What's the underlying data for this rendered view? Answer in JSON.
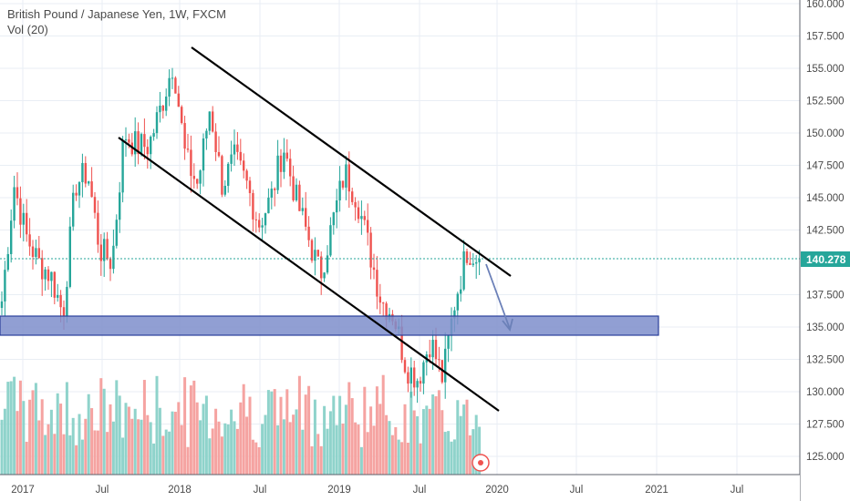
{
  "legend": {
    "title": "British Pound / Japanese Yen, 1W, FXCM",
    "volume": "Vol (20)"
  },
  "colors": {
    "up": "#26a69a",
    "down": "#ef5350",
    "up_vol": "#8fd3cb",
    "down_vol": "#f5a3a1",
    "zone_fill": "#7e8ecb",
    "zone_border": "#2a3f9b",
    "grid": "#e9eef4",
    "last_price": "#26a69a"
  },
  "chart_data": {
    "type": "candlestick",
    "title": "British Pound / Japanese Yen, 1W, FXCM",
    "ylim": [
      124,
      160.5
    ],
    "y_ticks": [
      "160.000",
      "157.500",
      "155.000",
      "152.500",
      "150.000",
      "147.500",
      "145.000",
      "142.500",
      "137.500",
      "135.000",
      "132.500",
      "130.000",
      "127.500",
      "125.000"
    ],
    "x_ticks": [
      "2017",
      "Jul",
      "2018",
      "Jul",
      "2019",
      "Jul",
      "2020",
      "Jul",
      "2021",
      "Jul"
    ],
    "last_price": "140.278",
    "approx_close_path": [
      [
        "2016-12",
        137
      ],
      [
        "2016-12",
        146
      ],
      [
        "2017-01",
        142
      ],
      [
        "2017-03",
        140
      ],
      [
        "2017-04",
        139
      ],
      [
        "2017-05",
        136
      ],
      [
        "2017-06",
        146
      ],
      [
        "2017-07",
        147
      ],
      [
        "2017-08",
        141
      ],
      [
        "2017-09",
        140
      ],
      [
        "2017-10",
        150
      ],
      [
        "2017-11",
        149
      ],
      [
        "2017-12",
        149
      ],
      [
        "2018-01",
        152
      ],
      [
        "2018-02",
        155.5
      ],
      [
        "2018-02",
        148
      ],
      [
        "2018-03",
        146
      ],
      [
        "2018-04",
        152
      ],
      [
        "2018-05",
        146
      ],
      [
        "2018-06",
        148
      ],
      [
        "2018-07",
        146
      ],
      [
        "2018-08",
        143
      ],
      [
        "2018-09",
        145
      ],
      [
        "2018-10",
        149
      ],
      [
        "2018-11",
        145
      ],
      [
        "2018-12",
        142
      ],
      [
        "2019-01",
        139
      ],
      [
        "2019-02",
        143
      ],
      [
        "2019-03",
        147
      ],
      [
        "2019-04",
        145
      ],
      [
        "2019-05",
        141
      ],
      [
        "2019-06",
        137
      ],
      [
        "2019-07",
        136
      ],
      [
        "2019-08",
        132
      ],
      [
        "2019-08",
        131
      ],
      [
        "2019-09",
        134
      ],
      [
        "2019-09",
        131
      ],
      [
        "2019-10",
        137
      ],
      [
        "2019-10",
        141
      ],
      [
        "2019-11",
        140.3
      ]
    ],
    "annotations": {
      "channel_upper": [
        [
          "2018-02",
          156.8
        ],
        [
          "2020-01",
          138.9
        ]
      ],
      "channel_lower": [
        [
          "2017-08",
          149.8
        ],
        [
          "2020-01",
          128.6
        ]
      ],
      "support_zone": [
        134.4,
        135.9
      ],
      "projection_arrow": [
        [
          "2019-11",
          140
        ],
        [
          "2020-01",
          134.8
        ]
      ]
    }
  }
}
